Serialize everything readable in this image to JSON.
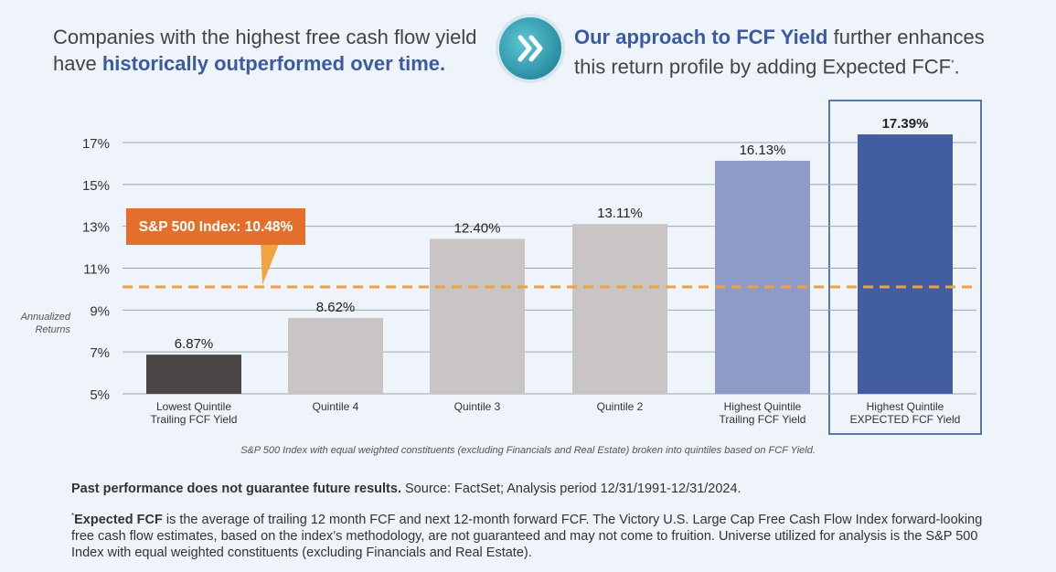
{
  "header": {
    "left_line1": "Companies with the highest free cash flow yield",
    "left_prefix": "have ",
    "left_emphasis": "historically outperformed over time.",
    "right_emphasis": "Our approach to FCF Yield",
    "right_text_a": " further enhances",
    "right_text_b": "this return profile by adding Expected FCF",
    "right_mark": "*",
    "right_end": "."
  },
  "chart_data": {
    "type": "bar",
    "categories": [
      [
        "Lowest Quintile",
        "Trailing FCF Yield"
      ],
      [
        "Quintile 4"
      ],
      [
        "Quintile 3"
      ],
      [
        "Quintile 2"
      ],
      [
        "Highest Quintile",
        "Trailing FCF Yield"
      ],
      [
        "Highest Quintile",
        "EXPECTED FCF Yield"
      ]
    ],
    "values": [
      6.87,
      8.62,
      12.4,
      13.11,
      16.13,
      17.39
    ],
    "value_labels": [
      "6.87%",
      "8.62%",
      "12.40%",
      "13.11%",
      "16.13%",
      "17.39%"
    ],
    "bar_colors": [
      "#4a4646",
      "#c9c5c4",
      "#c9c5c4",
      "#c9c5c4",
      "#8e9bc6",
      "#425ea1"
    ],
    "highlight_index": 5,
    "ylabel": [
      "Annualized",
      "Returns"
    ],
    "ylim": [
      5,
      18
    ],
    "yticks": [
      5,
      7,
      9,
      11,
      13,
      15,
      17
    ],
    "ytick_labels": [
      "5%",
      "7%",
      "9%",
      "11%",
      "13%",
      "15%",
      "17%"
    ],
    "reference_line": {
      "label": "S&P 500 Index: 10.48%",
      "value": 10.48,
      "color": "#f0a040"
    },
    "grid": true,
    "note": "S&P 500 Index with equal weighted constituents (excluding Financials and Real Estate) broken into quintiles based on FCF Yield."
  },
  "disclaimer": {
    "bold": "Past performance does not guarantee future results.",
    "text": " Source: FactSet; Analysis period 12/31/1991-12/31/2024."
  },
  "footnote": {
    "mark": "*",
    "bold": "Expected FCF",
    "text": " is the average of trailing 12 month FCF and next 12-month forward FCF. The Victory U.S. Large Cap Free Cash Flow Index forward-looking free cash flow estimates, based on the index’s methodology, are not guaranteed and may not come to fruition. Universe utilized for analysis is the S&P 500 Index with equal weighted constituents (excluding Financials and Real Estate)."
  },
  "icons": {
    "chevron": "double-chevron-right-icon",
    "accent": "#2a8fa3"
  }
}
